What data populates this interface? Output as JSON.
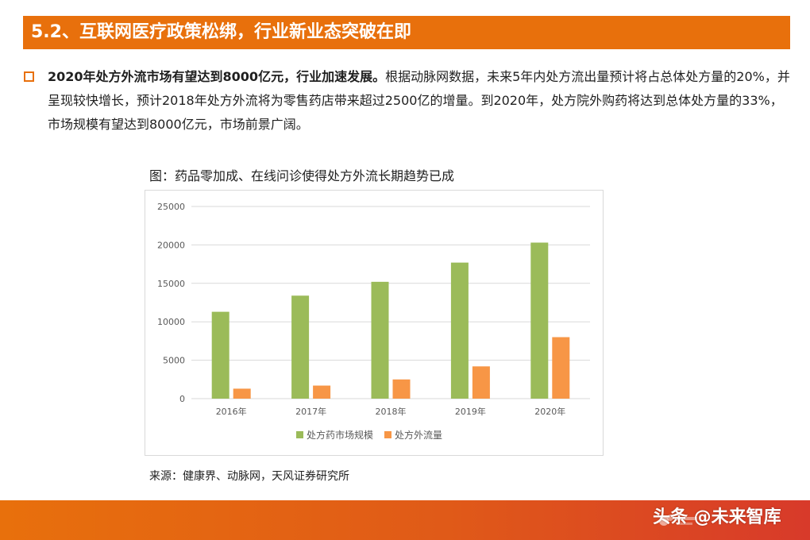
{
  "header": {
    "title": "5.2、互联网医疗政策松绑，行业新业态突破在即"
  },
  "paragraph": {
    "bold_lead": "2020年处方外流市场有望达到8000亿元，行业加速发展。",
    "body": "根据动脉网数据，未来5年内处方流出量预计将占总体处方量的20%，并呈现较快增长，预计2018年处方外流将为零售药店带来超过2500亿的增量。到2020年，处方院外购药将达到总体处方量的33%，市场规模有望达到8000亿元，市场前景广阔。"
  },
  "figure": {
    "caption": "图：药品零加成、在线问诊使得处方外流长期趋势已成",
    "source": "来源：健康界、动脉网，天风证券研究所"
  },
  "watermark": "头条 @未来智库",
  "colors": {
    "accent": "#e8700c",
    "series_green": "#9bbb59",
    "series_orange": "#f79646"
  },
  "chart_data": {
    "type": "bar",
    "categories": [
      "2016年",
      "2017年",
      "2018年",
      "2019年",
      "2020年"
    ],
    "series": [
      {
        "name": "处方药市场规模",
        "values": [
          11300,
          13400,
          15200,
          17700,
          20300
        ]
      },
      {
        "name": "处方外流量",
        "values": [
          1300,
          1700,
          2500,
          4200,
          8000
        ]
      }
    ],
    "yticks": [
      "0",
      "5000",
      "10000",
      "15000",
      "20000",
      "25000"
    ],
    "ylim": [
      0,
      25000
    ],
    "grid": true,
    "legend": "bottom"
  }
}
